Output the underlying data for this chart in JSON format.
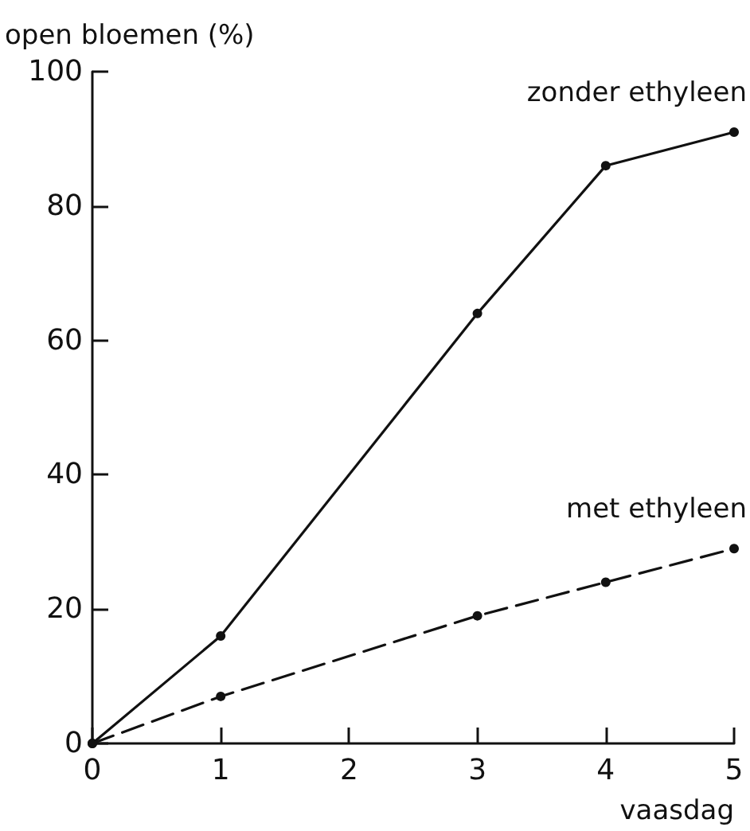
{
  "chart_data": {
    "type": "line",
    "xlabel": "vaasdag",
    "ylabel": "open bloemen (%)",
    "x": [
      0,
      1,
      3,
      4,
      5
    ],
    "series": [
      {
        "name": "zonder ethyleen",
        "color": "#111111",
        "line_style": "solid",
        "values": [
          0,
          16,
          64,
          86,
          91
        ]
      },
      {
        "name": "met ethyleen",
        "color": "#111111",
        "line_style": "dashed",
        "values": [
          0,
          7,
          19,
          24,
          29
        ]
      }
    ],
    "xlim": [
      0,
      5
    ],
    "xticks": [
      0,
      1,
      2,
      3,
      4,
      5
    ],
    "ylim": [
      0,
      100
    ],
    "yticks": [
      0,
      20,
      40,
      60,
      80,
      100
    ],
    "grid": false,
    "legend": false,
    "marker": "circle"
  }
}
